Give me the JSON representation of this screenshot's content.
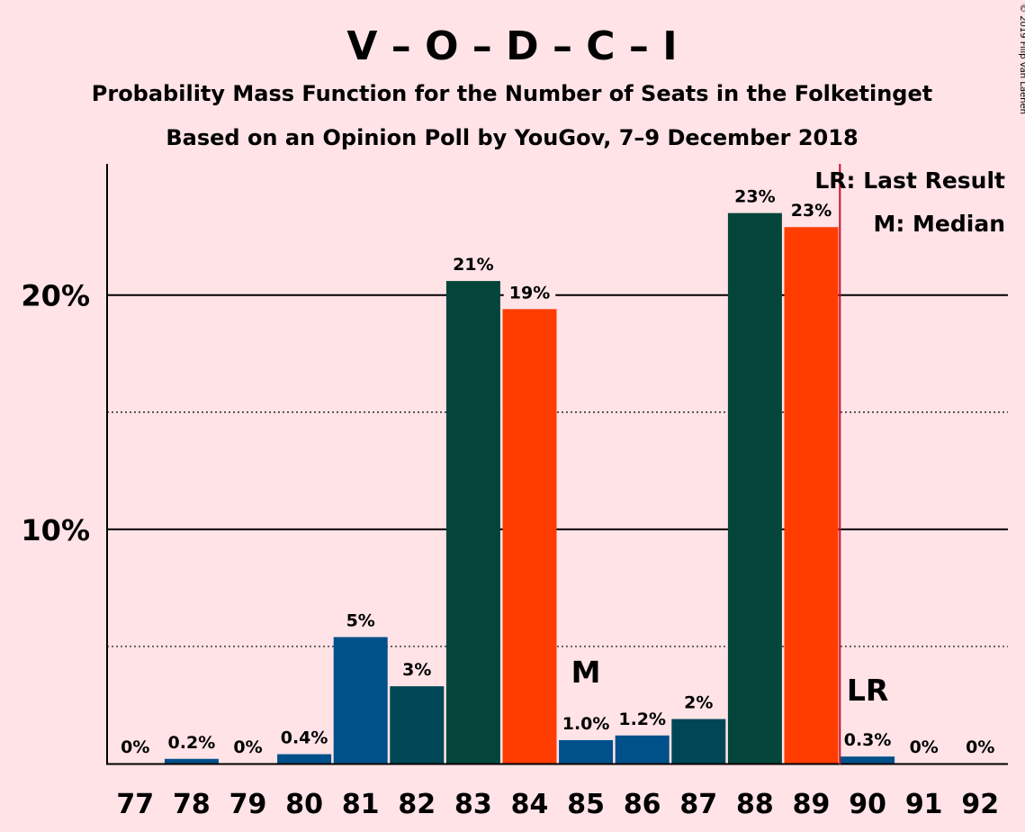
{
  "chart_data": {
    "type": "bar",
    "title": "V – O – D – C – I",
    "subtitle1": "Probability Mass Function for the Number of Seats in the Folketinget",
    "subtitle2": "Based on an Opinion Poll by YouGov, 7–9 December 2018",
    "copyright": "© 2019 Filip van Laenen",
    "categories": [
      "77",
      "78",
      "79",
      "80",
      "81",
      "82",
      "83",
      "84",
      "85",
      "86",
      "87",
      "88",
      "89",
      "90",
      "91",
      "92"
    ],
    "values": [
      0,
      0.2,
      0,
      0.4,
      5.4,
      3.3,
      20.6,
      19.4,
      1.0,
      1.2,
      1.9,
      23.5,
      22.9,
      0.3,
      0,
      0
    ],
    "value_labels": [
      "0%",
      "0.2%",
      "0%",
      "0.4%",
      "5%",
      "3%",
      "21%",
      "19%",
      "1.0%",
      "1.2%",
      "2%",
      "23%",
      "23%",
      "0.3%",
      "0%",
      "0%"
    ],
    "bar_colors": [
      "#00508A",
      "#00508A",
      "#00508A",
      "#00508A",
      "#00508A",
      "#004655",
      "#03453A",
      "#FF3D00",
      "#00508A",
      "#00508A",
      "#004655",
      "#03453A",
      "#FF3D00",
      "#00508A",
      "#00508A",
      "#00508A"
    ],
    "yticks": [
      {
        "value": 10,
        "label": "10%"
      },
      {
        "value": 20,
        "label": "20%"
      }
    ],
    "ylim": [
      0,
      25.6
    ],
    "minor_gridlines": [
      5,
      15
    ],
    "median_seat": "85",
    "median_marker": "M",
    "last_result_seat": "90",
    "last_result_marker": "LR",
    "legend": [
      "LR: Last Result",
      "M: Median"
    ],
    "legend_position": "top-right",
    "colors": {
      "background": "#FFE3E6",
      "last_result_line": "#C8102E"
    }
  }
}
